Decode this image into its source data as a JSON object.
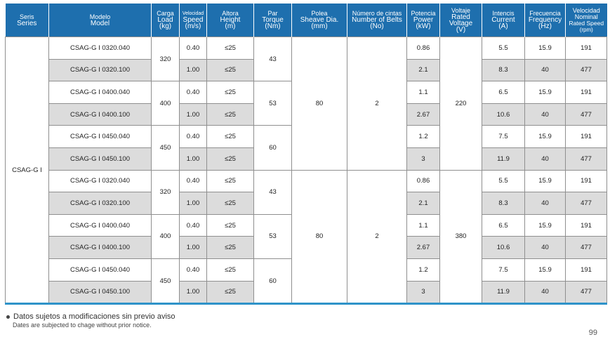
{
  "headers": [
    {
      "es": "Seris",
      "en": "Series"
    },
    {
      "es": "Modelo",
      "en": "Model"
    },
    {
      "es": "Carga",
      "en": "Load",
      "unit": "(kg)"
    },
    {
      "es": "Velocidad",
      "en": "Speed",
      "unit": "(m/s)"
    },
    {
      "es": "Altora",
      "en": "Height",
      "unit": "(m)"
    },
    {
      "es": "Par",
      "en": "Torque",
      "unit": "(Nm)"
    },
    {
      "es": "Polea",
      "en": "Sheave Dia.",
      "unit": "(mm)"
    },
    {
      "es": "Número de cintas",
      "en": "Number of Belts",
      "unit": "(No)"
    },
    {
      "es": "Potencia",
      "en": "Power",
      "unit": "(kW)"
    },
    {
      "es": "Voltaje",
      "en": "Rated",
      "en2": "Voltage",
      "unit": "(V)"
    },
    {
      "es": "Intencis",
      "en": "Current",
      "unit": "(A)"
    },
    {
      "es": "Frecuencia",
      "en": "Frequency",
      "unit": "(Hz)"
    },
    {
      "es": "Velocidad",
      "es2": "Nominal",
      "en": "Rated Speed",
      "unit": "(rpm)"
    }
  ],
  "series": "CSAG-G I",
  "rows": [
    {
      "model": "CSAG-G I 0320.040",
      "load": "320",
      "speed": "0.40",
      "height": "≤25",
      "torque": "43",
      "sheave": "80",
      "belts": "2",
      "power": "0.86",
      "voltage": "220",
      "current": "5.5",
      "frequency": "15.9",
      "rpm": "191"
    },
    {
      "model": "CSAG-G I 0320.100",
      "speed": "1.00",
      "height": "≤25",
      "power": "2.1",
      "current": "8.3",
      "frequency": "40",
      "rpm": "477"
    },
    {
      "model": "CSAG-G I 0400.040",
      "load": "400",
      "speed": "0.40",
      "height": "≤25",
      "torque": "53",
      "power": "1.1",
      "current": "6.5",
      "frequency": "15.9",
      "rpm": "191"
    },
    {
      "model": "CSAG-G I 0400.100",
      "speed": "1.00",
      "height": "≤25",
      "power": "2.67",
      "current": "10.6",
      "frequency": "40",
      "rpm": "477"
    },
    {
      "model": "CSAG-G I 0450.040",
      "load": "450",
      "speed": "0.40",
      "height": "≤25",
      "torque": "60",
      "power": "1.2",
      "current": "7.5",
      "frequency": "15.9",
      "rpm": "191"
    },
    {
      "model": "CSAG-G I 0450.100",
      "speed": "1.00",
      "height": "≤25",
      "power": "3",
      "current": "11.9",
      "frequency": "40",
      "rpm": "477"
    },
    {
      "model": "CSAG-G I 0320.040",
      "load": "320",
      "speed": "0.40",
      "height": "≤25",
      "torque": "43",
      "sheave": "80",
      "belts": "2",
      "power": "0.86",
      "voltage": "380",
      "current": "5.5",
      "frequency": "15.9",
      "rpm": "191"
    },
    {
      "model": "CSAG-G I 0320.100",
      "speed": "1.00",
      "height": "≤25",
      "power": "2.1",
      "current": "8.3",
      "frequency": "40",
      "rpm": "477"
    },
    {
      "model": "CSAG-G I 0400.040",
      "load": "400",
      "speed": "0.40",
      "height": "≤25",
      "torque": "53",
      "power": "1.1",
      "current": "6.5",
      "frequency": "15.9",
      "rpm": "191"
    },
    {
      "model": "CSAG-G I 0400.100",
      "speed": "1.00",
      "height": "≤25",
      "power": "2.67",
      "current": "10.6",
      "frequency": "40",
      "rpm": "477"
    },
    {
      "model": "CSAG-G I 0450.040",
      "load": "450",
      "speed": "0.40",
      "height": "≤25",
      "torque": "60",
      "power": "1.2",
      "current": "7.5",
      "frequency": "15.9",
      "rpm": "191"
    },
    {
      "model": "CSAG-G I 0450.100",
      "speed": "1.00",
      "height": "≤25",
      "power": "3",
      "current": "11.9",
      "frequency": "40",
      "rpm": "477"
    }
  ],
  "footnote": {
    "es": "Datos sujetos a modificaciones sin previo aviso",
    "en": "Dates are subjected to chage without prior notice."
  },
  "page_number": "99",
  "colors": {
    "header_bg": "#1e6fae",
    "alt_row": "#dcdcdc",
    "bottom_rule": "#2f93c9"
  }
}
